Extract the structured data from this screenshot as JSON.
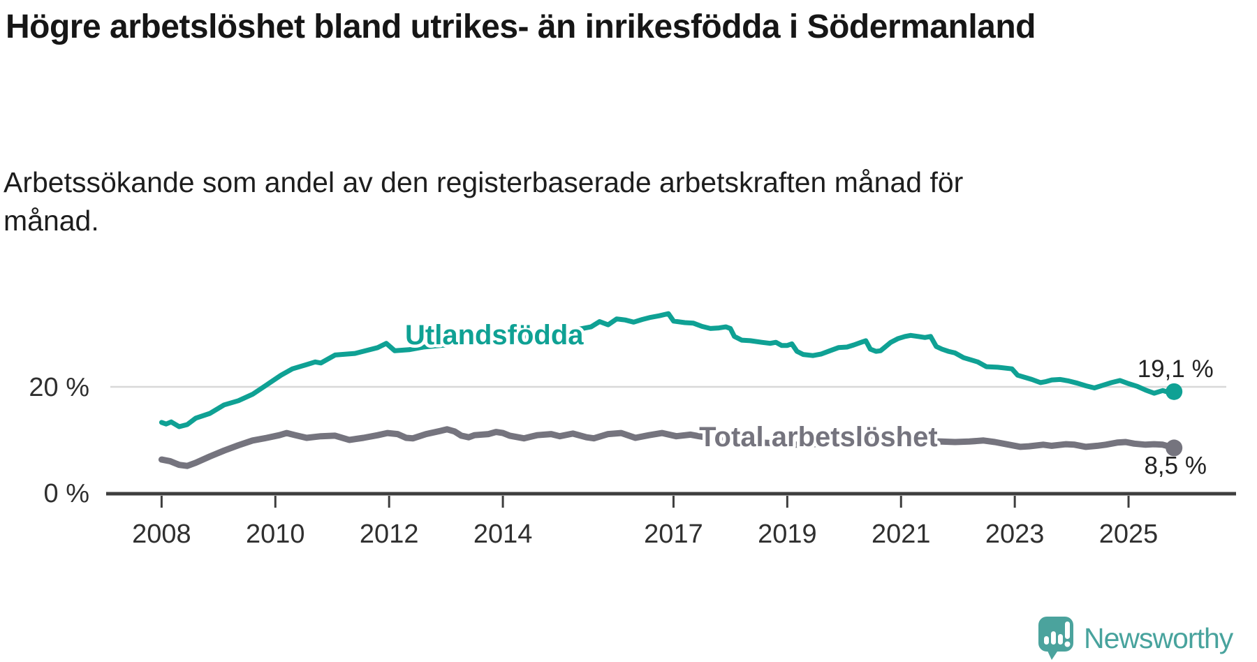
{
  "header": {
    "title": "Högre arbetslöshet bland utrikes- än inrikesfödda i Södermanland",
    "subtitle": "Arbetssökande som andel av den registerbaserade arbetskraften månad för månad."
  },
  "chart_data": {
    "type": "line",
    "title": "Högre arbetslöshet bland utrikes- än inrikesfödda i Södermanland",
    "subtitle": "Arbetssökande som andel av den registerbaserade arbetskraften månad för månad.",
    "x_axis": {
      "tick_labels": [
        "2008",
        "2010",
        "2012",
        "2014",
        "2017",
        "2019",
        "2021",
        "2023",
        "2025"
      ],
      "tick_years": [
        2008,
        2010,
        2012,
        2014,
        2017,
        2019,
        2021,
        2023,
        2025
      ],
      "range_years": [
        2007.05,
        2026.9
      ]
    },
    "y_axis": {
      "ticks": [
        {
          "value": 0,
          "label": "0 %"
        },
        {
          "value": 20,
          "label": "20 %"
        }
      ],
      "range": [
        0,
        42
      ],
      "gridlines_at": [
        20
      ]
    },
    "legend_position": "inline-labels",
    "grid": "single horizontal gridline at 20 %",
    "series": [
      {
        "name": "Utlandsfödda",
        "color": "#0FA194",
        "end_label": "19,1 %",
        "end_value": 19.1,
        "label_anchor": {
          "year": 2012.28,
          "pct": 28.0
        },
        "points": [
          [
            2008.0,
            13.3
          ],
          [
            2008.08,
            13.0
          ],
          [
            2008.17,
            13.4
          ],
          [
            2008.31,
            12.5
          ],
          [
            2008.45,
            12.9
          ],
          [
            2008.6,
            14.1
          ],
          [
            2008.85,
            15.0
          ],
          [
            2009.1,
            16.6
          ],
          [
            2009.35,
            17.4
          ],
          [
            2009.6,
            18.6
          ],
          [
            2009.85,
            20.4
          ],
          [
            2010.1,
            22.2
          ],
          [
            2010.3,
            23.4
          ],
          [
            2010.55,
            24.2
          ],
          [
            2010.7,
            24.7
          ],
          [
            2010.8,
            24.5
          ],
          [
            2011.05,
            26.0
          ],
          [
            2011.4,
            26.3
          ],
          [
            2011.8,
            27.4
          ],
          [
            2011.95,
            28.2
          ],
          [
            2012.1,
            26.8
          ],
          [
            2012.35,
            27.0
          ],
          [
            2012.6,
            27.5
          ],
          [
            2013.0,
            27.9
          ],
          [
            2013.4,
            28.3
          ],
          [
            2013.8,
            28.8
          ],
          [
            2014.2,
            29.3
          ],
          [
            2014.6,
            29.8
          ],
          [
            2015.0,
            30.3
          ],
          [
            2015.3,
            30.8
          ],
          [
            2015.55,
            31.3
          ],
          [
            2015.7,
            32.3
          ],
          [
            2015.85,
            31.7
          ],
          [
            2016.0,
            32.8
          ],
          [
            2016.15,
            32.6
          ],
          [
            2016.3,
            32.2
          ],
          [
            2016.45,
            32.7
          ],
          [
            2016.6,
            33.1
          ],
          [
            2016.75,
            33.4
          ],
          [
            2016.91,
            33.8
          ],
          [
            2017.0,
            32.4
          ],
          [
            2017.2,
            32.1
          ],
          [
            2017.35,
            32.0
          ],
          [
            2017.5,
            31.4
          ],
          [
            2017.65,
            31.0
          ],
          [
            2017.8,
            31.1
          ],
          [
            2017.92,
            31.3
          ],
          [
            2018.0,
            31.0
          ],
          [
            2018.07,
            29.5
          ],
          [
            2018.2,
            28.8
          ],
          [
            2018.35,
            28.7
          ],
          [
            2018.55,
            28.4
          ],
          [
            2018.7,
            28.2
          ],
          [
            2018.8,
            28.4
          ],
          [
            2018.9,
            27.8
          ],
          [
            2019.0,
            27.8
          ],
          [
            2019.08,
            28.1
          ],
          [
            2019.17,
            26.7
          ],
          [
            2019.28,
            26.1
          ],
          [
            2019.45,
            25.9
          ],
          [
            2019.6,
            26.2
          ],
          [
            2019.75,
            26.8
          ],
          [
            2019.9,
            27.4
          ],
          [
            2020.05,
            27.5
          ],
          [
            2020.17,
            27.9
          ],
          [
            2020.3,
            28.4
          ],
          [
            2020.38,
            28.7
          ],
          [
            2020.46,
            27.1
          ],
          [
            2020.56,
            26.7
          ],
          [
            2020.64,
            26.8
          ],
          [
            2020.72,
            27.5
          ],
          [
            2020.82,
            28.4
          ],
          [
            2020.95,
            29.1
          ],
          [
            2021.07,
            29.5
          ],
          [
            2021.17,
            29.7
          ],
          [
            2021.3,
            29.5
          ],
          [
            2021.42,
            29.3
          ],
          [
            2021.52,
            29.5
          ],
          [
            2021.62,
            27.6
          ],
          [
            2021.72,
            27.1
          ],
          [
            2021.83,
            26.7
          ],
          [
            2021.95,
            26.4
          ],
          [
            2022.1,
            25.5
          ],
          [
            2022.35,
            24.7
          ],
          [
            2022.5,
            23.8
          ],
          [
            2022.7,
            23.7
          ],
          [
            2022.95,
            23.4
          ],
          [
            2023.05,
            22.2
          ],
          [
            2023.3,
            21.4
          ],
          [
            2023.45,
            20.8
          ],
          [
            2023.55,
            21.0
          ],
          [
            2023.65,
            21.3
          ],
          [
            2023.8,
            21.4
          ],
          [
            2023.95,
            21.1
          ],
          [
            2024.1,
            20.7
          ],
          [
            2024.25,
            20.2
          ],
          [
            2024.4,
            19.8
          ],
          [
            2024.55,
            20.3
          ],
          [
            2024.7,
            20.8
          ],
          [
            2024.85,
            21.2
          ],
          [
            2025.0,
            20.6
          ],
          [
            2025.15,
            20.1
          ],
          [
            2025.3,
            19.4
          ],
          [
            2025.45,
            18.8
          ],
          [
            2025.6,
            19.3
          ],
          [
            2025.7,
            19.0
          ],
          [
            2025.8,
            19.1
          ]
        ]
      },
      {
        "name": "Total arbetslöshet",
        "color": "#75747E",
        "end_label": "8,5 %",
        "end_value": 8.5,
        "label_anchor": {
          "year": 2017.45,
          "pct": 8.8
        },
        "points": [
          [
            2008.0,
            6.3
          ],
          [
            2008.15,
            6.0
          ],
          [
            2008.31,
            5.3
          ],
          [
            2008.45,
            5.1
          ],
          [
            2008.6,
            5.7
          ],
          [
            2008.85,
            6.9
          ],
          [
            2009.1,
            8.0
          ],
          [
            2009.35,
            9.0
          ],
          [
            2009.6,
            9.9
          ],
          [
            2009.85,
            10.4
          ],
          [
            2010.07,
            10.9
          ],
          [
            2010.2,
            11.3
          ],
          [
            2010.35,
            10.9
          ],
          [
            2010.55,
            10.4
          ],
          [
            2010.8,
            10.7
          ],
          [
            2011.05,
            10.8
          ],
          [
            2011.3,
            10.0
          ],
          [
            2011.55,
            10.4
          ],
          [
            2011.8,
            10.9
          ],
          [
            2011.97,
            11.3
          ],
          [
            2012.15,
            11.1
          ],
          [
            2012.3,
            10.4
          ],
          [
            2012.42,
            10.3
          ],
          [
            2012.65,
            11.1
          ],
          [
            2012.9,
            11.7
          ],
          [
            2013.02,
            12.0
          ],
          [
            2013.15,
            11.6
          ],
          [
            2013.27,
            10.8
          ],
          [
            2013.4,
            10.5
          ],
          [
            2013.5,
            10.9
          ],
          [
            2013.75,
            11.1
          ],
          [
            2013.88,
            11.5
          ],
          [
            2014.0,
            11.3
          ],
          [
            2014.12,
            10.8
          ],
          [
            2014.37,
            10.3
          ],
          [
            2014.6,
            10.9
          ],
          [
            2014.85,
            11.1
          ],
          [
            2015.0,
            10.7
          ],
          [
            2015.23,
            11.2
          ],
          [
            2015.47,
            10.5
          ],
          [
            2015.6,
            10.3
          ],
          [
            2015.85,
            11.1
          ],
          [
            2016.08,
            11.3
          ],
          [
            2016.33,
            10.4
          ],
          [
            2016.57,
            10.9
          ],
          [
            2016.8,
            11.3
          ],
          [
            2017.05,
            10.7
          ],
          [
            2017.3,
            11.0
          ],
          [
            2017.45,
            10.7
          ],
          [
            2017.7,
            10.3
          ],
          [
            2017.95,
            10.0
          ],
          [
            2018.25,
            9.7
          ],
          [
            2018.55,
            9.5
          ],
          [
            2018.85,
            9.3
          ],
          [
            2019.15,
            9.1
          ],
          [
            2019.45,
            9.2
          ],
          [
            2019.75,
            9.4
          ],
          [
            2020.05,
            9.7
          ],
          [
            2020.3,
            10.4
          ],
          [
            2020.5,
            10.8
          ],
          [
            2020.8,
            10.5
          ],
          [
            2021.1,
            10.1
          ],
          [
            2021.4,
            9.8
          ],
          [
            2021.7,
            9.7
          ],
          [
            2021.95,
            9.6
          ],
          [
            2022.2,
            9.7
          ],
          [
            2022.45,
            9.9
          ],
          [
            2022.65,
            9.6
          ],
          [
            2022.85,
            9.2
          ],
          [
            2023.1,
            8.7
          ],
          [
            2023.25,
            8.8
          ],
          [
            2023.5,
            9.1
          ],
          [
            2023.65,
            8.9
          ],
          [
            2023.9,
            9.2
          ],
          [
            2024.05,
            9.1
          ],
          [
            2024.25,
            8.7
          ],
          [
            2024.45,
            8.9
          ],
          [
            2024.6,
            9.1
          ],
          [
            2024.8,
            9.5
          ],
          [
            2024.95,
            9.6
          ],
          [
            2025.1,
            9.3
          ],
          [
            2025.3,
            9.1
          ],
          [
            2025.45,
            9.2
          ],
          [
            2025.6,
            9.1
          ],
          [
            2025.7,
            8.8
          ],
          [
            2025.8,
            8.5
          ]
        ]
      }
    ]
  },
  "branding": {
    "name": "Newsworthy"
  }
}
